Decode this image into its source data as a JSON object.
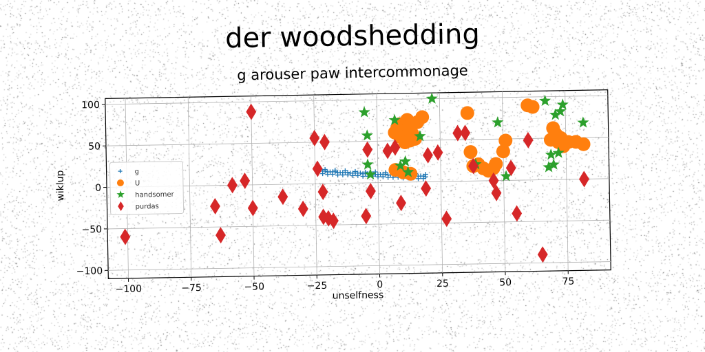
{
  "chart_data": {
    "type": "scatter",
    "title": "der woodshedding",
    "subtitle": "g arouser paw intercommonage",
    "xlabel": "unselfness",
    "ylabel": "wiklup",
    "xlim": [
      -108,
      92
    ],
    "ylim": [
      -110,
      107
    ],
    "xticks": [
      -100,
      -75,
      -50,
      -25,
      0,
      25,
      50,
      75
    ],
    "yticks": [
      -100,
      -50,
      0,
      50,
      100
    ],
    "xtick_labels": [
      "−100",
      "−75",
      "−50",
      "−25",
      "0",
      "25",
      "50",
      "75"
    ],
    "ytick_labels": [
      "−100",
      "−50",
      "0",
      "50",
      "100"
    ],
    "grid": true,
    "legend_position": "center-left",
    "series": [
      {
        "name": "g",
        "marker": "plus",
        "color": "#1f77b4",
        "points": [
          [
            -22,
            15
          ],
          [
            -21,
            15
          ],
          [
            -20,
            14
          ],
          [
            -19,
            14
          ],
          [
            -18,
            14
          ],
          [
            -17,
            14
          ],
          [
            -16,
            13
          ],
          [
            -15,
            13
          ],
          [
            -14,
            13
          ],
          [
            -13,
            13
          ],
          [
            -12,
            13
          ],
          [
            -11,
            12
          ],
          [
            -10,
            12
          ],
          [
            -9,
            12
          ],
          [
            -8,
            12
          ],
          [
            -7,
            12
          ],
          [
            -6,
            11
          ],
          [
            -5,
            11
          ],
          [
            -4,
            11
          ],
          [
            -3,
            11
          ],
          [
            -2,
            11
          ],
          [
            -1,
            10
          ],
          [
            0,
            10
          ],
          [
            1,
            10
          ],
          [
            2,
            10
          ],
          [
            3,
            10
          ],
          [
            4,
            9
          ],
          [
            5,
            9
          ],
          [
            6,
            9
          ],
          [
            7,
            9
          ],
          [
            8,
            9
          ],
          [
            9,
            8
          ],
          [
            10,
            8
          ],
          [
            11,
            8
          ],
          [
            12,
            8
          ],
          [
            13,
            8
          ],
          [
            14,
            7
          ],
          [
            15,
            7
          ],
          [
            16,
            7
          ],
          [
            17,
            7
          ],
          [
            18,
            7
          ],
          [
            19,
            6
          ],
          [
            -22,
            12
          ],
          [
            -20,
            11
          ],
          [
            -18,
            11
          ],
          [
            -16,
            10
          ],
          [
            -14,
            10
          ],
          [
            -12,
            10
          ],
          [
            -10,
            9
          ],
          [
            -8,
            9
          ],
          [
            -6,
            8
          ],
          [
            -4,
            8
          ],
          [
            -2,
            8
          ],
          [
            0,
            7
          ],
          [
            2,
            7
          ],
          [
            4,
            6
          ],
          [
            6,
            6
          ],
          [
            8,
            6
          ],
          [
            10,
            5
          ],
          [
            12,
            5
          ],
          [
            14,
            5
          ],
          [
            16,
            4
          ],
          [
            18,
            4
          ],
          [
            -21,
            17
          ],
          [
            -17,
            16
          ],
          [
            -13,
            15
          ],
          [
            -9,
            14
          ],
          [
            -5,
            13
          ],
          [
            -1,
            13
          ],
          [
            3,
            12
          ],
          [
            7,
            11
          ],
          [
            11,
            10
          ],
          [
            15,
            10
          ],
          [
            19,
            9
          ]
        ]
      },
      {
        "name": "U",
        "marker": "circle",
        "color": "#ff7f0e",
        "points": [
          [
            7,
            60
          ],
          [
            8,
            65
          ],
          [
            9,
            70
          ],
          [
            10,
            62
          ],
          [
            11,
            55
          ],
          [
            12,
            75
          ],
          [
            13,
            68
          ],
          [
            14,
            58
          ],
          [
            15,
            52
          ],
          [
            16,
            72
          ],
          [
            18,
            78
          ],
          [
            9,
            55
          ],
          [
            11,
            48
          ],
          [
            13,
            50
          ],
          [
            7,
            15
          ],
          [
            10,
            12
          ],
          [
            13,
            10
          ],
          [
            36,
            82
          ],
          [
            37,
            35
          ],
          [
            38,
            18
          ],
          [
            40,
            20
          ],
          [
            42,
            15
          ],
          [
            44,
            12
          ],
          [
            46,
            15
          ],
          [
            47,
            20
          ],
          [
            50,
            35
          ],
          [
            51,
            48
          ],
          [
            60,
            90
          ],
          [
            62,
            88
          ],
          [
            69,
            48
          ],
          [
            70,
            62
          ],
          [
            71,
            55
          ],
          [
            72,
            45
          ],
          [
            73,
            50
          ],
          [
            74,
            40
          ],
          [
            76,
            45
          ],
          [
            79,
            45
          ],
          [
            82,
            42
          ]
        ]
      },
      {
        "name": "handsomer",
        "marker": "star",
        "color": "#2ca02c",
        "points": [
          [
            -5,
            85
          ],
          [
            -4,
            57
          ],
          [
            -4,
            22
          ],
          [
            -3,
            10
          ],
          [
            7,
            75
          ],
          [
            9,
            20
          ],
          [
            11,
            25
          ],
          [
            12,
            12
          ],
          [
            17,
            55
          ],
          [
            22,
            100
          ],
          [
            39,
            20
          ],
          [
            48,
            70
          ],
          [
            51,
            5
          ],
          [
            67,
            95
          ],
          [
            68,
            15
          ],
          [
            69,
            30
          ],
          [
            70,
            18
          ],
          [
            71,
            78
          ],
          [
            72,
            32
          ],
          [
            73,
            82
          ],
          [
            74,
            90
          ],
          [
            82,
            68
          ]
        ]
      },
      {
        "name": "purdas",
        "marker": "thin_diamond",
        "color": "#d62728",
        "points": [
          [
            -101,
            -60
          ],
          [
            -63,
            -60
          ],
          [
            -65,
            -25
          ],
          [
            -58,
            0
          ],
          [
            -53,
            5
          ],
          [
            -50,
            88
          ],
          [
            -50,
            -28
          ],
          [
            -38,
            -15
          ],
          [
            -30,
            -30
          ],
          [
            -25,
            55
          ],
          [
            -24,
            18
          ],
          [
            -22,
            -10
          ],
          [
            -22,
            -40
          ],
          [
            -21,
            50
          ],
          [
            -20,
            -42
          ],
          [
            -18,
            -45
          ],
          [
            -5,
            -40
          ],
          [
            -4,
            40
          ],
          [
            -3,
            -10
          ],
          [
            4,
            38
          ],
          [
            7,
            42
          ],
          [
            9,
            -25
          ],
          [
            19,
            -8
          ],
          [
            20,
            32
          ],
          [
            24,
            35
          ],
          [
            27,
            -45
          ],
          [
            32,
            58
          ],
          [
            35,
            58
          ],
          [
            38,
            18
          ],
          [
            46,
            0
          ],
          [
            47,
            -15
          ],
          [
            53,
            15
          ],
          [
            55,
            -40
          ],
          [
            60,
            48
          ],
          [
            65,
            -90
          ],
          [
            82,
            0
          ]
        ]
      }
    ]
  }
}
